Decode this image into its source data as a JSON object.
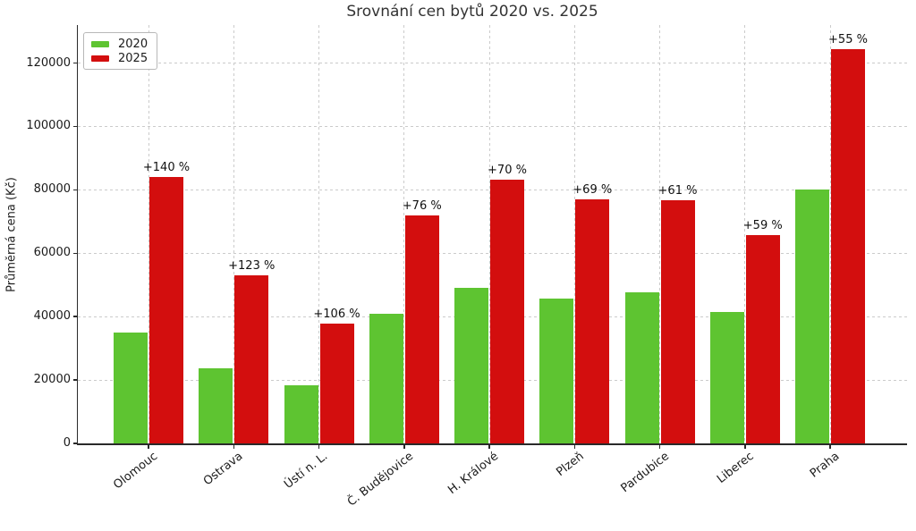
{
  "chart_data": {
    "type": "bar",
    "title": "Srovnání cen bytů 2020 vs. 2025",
    "ylabel": "Průměrná cena (Kč)",
    "xlabel": "",
    "categories": [
      "Olomouc",
      "Ostrava",
      "Ústí n. L.",
      "Č. Budějovice",
      "H. Králové",
      "Plzeň",
      "Pardubice",
      "Liberec",
      "Praha"
    ],
    "series": [
      {
        "name": "2020",
        "color": "#5ec431",
        "values": [
          35000,
          23700,
          18300,
          40800,
          49000,
          45600,
          47700,
          41400,
          80200
        ]
      },
      {
        "name": "2025",
        "color": "#d30e0e",
        "values": [
          84000,
          52900,
          37700,
          71800,
          83300,
          77100,
          76800,
          65800,
          124300
        ]
      }
    ],
    "annotations": [
      "+140 %",
      "+123 %",
      "+106 %",
      "+76 %",
      "+70 %",
      "+69 %",
      "+61 %",
      "+59 %",
      "+55 %"
    ],
    "yticks": [
      0,
      20000,
      40000,
      60000,
      80000,
      100000,
      120000
    ],
    "ylim": [
      0,
      132000
    ],
    "grid": {
      "horizontal": true,
      "vertical": true,
      "style": "dashed",
      "color": "#cbcbcb"
    },
    "legend": {
      "position": "upper left"
    }
  }
}
